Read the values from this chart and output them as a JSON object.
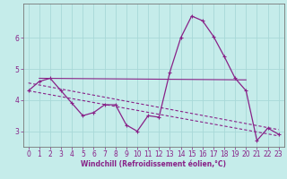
{
  "xlabel": "Windchill (Refroidissement éolien,°C)",
  "background_color": "#c5ecea",
  "grid_color": "#a8d8d8",
  "line_color": "#882288",
  "spine_color": "#777777",
  "x_hours": [
    0,
    1,
    2,
    3,
    4,
    5,
    6,
    7,
    8,
    9,
    10,
    11,
    12,
    13,
    14,
    15,
    16,
    17,
    18,
    19,
    20,
    21,
    22,
    23
  ],
  "windchill": [
    4.3,
    4.6,
    4.7,
    4.3,
    3.9,
    3.5,
    3.6,
    3.85,
    3.85,
    3.2,
    3.0,
    3.5,
    3.45,
    4.9,
    6.0,
    6.7,
    6.55,
    6.05,
    5.4,
    4.7,
    4.3,
    2.7,
    3.1,
    2.9
  ],
  "trend1_x": [
    1,
    20
  ],
  "trend1_y": [
    4.7,
    4.65
  ],
  "trend2_x": [
    0,
    23
  ],
  "trend2_y": [
    4.55,
    3.05
  ],
  "trend3_x": [
    0,
    23
  ],
  "trend3_y": [
    4.3,
    2.85
  ],
  "ylim": [
    2.5,
    7.1
  ],
  "xlim": [
    -0.5,
    23.5
  ],
  "yticks": [
    3,
    4,
    5,
    6
  ],
  "xticks": [
    0,
    1,
    2,
    3,
    4,
    5,
    6,
    7,
    8,
    9,
    10,
    11,
    12,
    13,
    14,
    15,
    16,
    17,
    18,
    19,
    20,
    21,
    22,
    23
  ],
  "tick_fontsize": 5.5,
  "xlabel_fontsize": 5.5
}
